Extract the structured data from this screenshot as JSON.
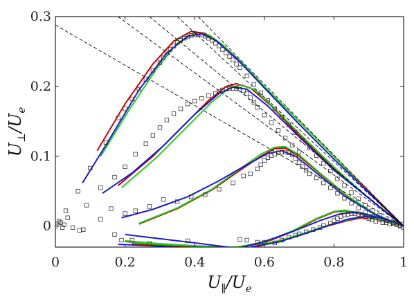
{
  "chart_data": {
    "type": "line",
    "xlabel": "U_∥/U_e",
    "ylabel": "U_⊥/U_e",
    "xlabel_parts": {
      "main": "U",
      "sub": "∥",
      "rest": "/U",
      "sub2": "e"
    },
    "ylabel_parts": {
      "main": "U",
      "sub": "⊥",
      "rest": "/U",
      "sub2": "e"
    },
    "xlim": [
      0,
      1
    ],
    "ylim": [
      -0.03,
      0.3
    ],
    "x_ticks": [
      0,
      0.2,
      0.4,
      0.6,
      0.8,
      1
    ],
    "y_ticks": [
      0,
      0.1,
      0.2,
      0.3
    ],
    "x_tick_labels": [
      "0",
      "0.2",
      "0.4",
      "0.6",
      "0.8",
      "1"
    ],
    "y_tick_labels": [
      "0",
      "0.1",
      "0.2",
      "0.3"
    ],
    "grid": false,
    "legend": "none",
    "series": [
      {
        "color": "#cc0000",
        "style": "solid",
        "x": [
          0.12,
          0.2,
          0.28,
          0.34,
          0.39,
          0.43,
          0.47,
          0.53,
          0.6,
          0.7,
          0.8,
          0.9,
          1.0
        ],
        "y": [
          0.108,
          0.175,
          0.232,
          0.265,
          0.279,
          0.276,
          0.262,
          0.235,
          0.2,
          0.15,
          0.1,
          0.05,
          0.0
        ]
      },
      {
        "color": "#22cc22",
        "style": "solid",
        "x": [
          0.13,
          0.21,
          0.29,
          0.35,
          0.4,
          0.44,
          0.48,
          0.54,
          0.61,
          0.71,
          0.81,
          0.9,
          1.0
        ],
        "y": [
          0.1,
          0.165,
          0.225,
          0.262,
          0.276,
          0.274,
          0.26,
          0.232,
          0.195,
          0.145,
          0.095,
          0.048,
          0.0
        ]
      },
      {
        "color": "#1a1acc",
        "style": "solid",
        "x": [
          0.078,
          0.15,
          0.24,
          0.32,
          0.38,
          0.42,
          0.46,
          0.52,
          0.6,
          0.7,
          0.8,
          0.9,
          1.0
        ],
        "y": [
          0.062,
          0.12,
          0.195,
          0.248,
          0.272,
          0.275,
          0.266,
          0.24,
          0.198,
          0.146,
          0.096,
          0.048,
          0.0
        ]
      },
      {
        "color": "#cc0000",
        "style": "solid",
        "x": [
          0.18,
          0.28,
          0.37,
          0.44,
          0.49,
          0.52,
          0.56,
          0.62,
          0.7,
          0.8,
          0.9,
          1.0
        ],
        "y": [
          0.058,
          0.1,
          0.145,
          0.18,
          0.2,
          0.204,
          0.198,
          0.172,
          0.13,
          0.082,
          0.04,
          0.0
        ]
      },
      {
        "color": "#22cc22",
        "style": "solid",
        "x": [
          0.19,
          0.29,
          0.38,
          0.45,
          0.5,
          0.53,
          0.57,
          0.63,
          0.71,
          0.81,
          0.9,
          1.0
        ],
        "y": [
          0.055,
          0.098,
          0.143,
          0.178,
          0.198,
          0.202,
          0.196,
          0.168,
          0.128,
          0.08,
          0.04,
          0.0
        ]
      },
      {
        "color": "#1a1acc",
        "style": "solid",
        "x": [
          0.135,
          0.22,
          0.31,
          0.4,
          0.47,
          0.51,
          0.55,
          0.61,
          0.7,
          0.8,
          0.9,
          1.0
        ],
        "y": [
          0.047,
          0.076,
          0.115,
          0.16,
          0.19,
          0.199,
          0.196,
          0.172,
          0.128,
          0.08,
          0.04,
          0.0
        ]
      },
      {
        "color": "#cc0000",
        "style": "solid",
        "x": [
          0.24,
          0.35,
          0.45,
          0.53,
          0.59,
          0.63,
          0.66,
          0.7,
          0.76,
          0.84,
          0.92,
          1.0
        ],
        "y": [
          0.003,
          0.025,
          0.052,
          0.08,
          0.1,
          0.111,
          0.112,
          0.1,
          0.075,
          0.042,
          0.016,
          0.0
        ]
      },
      {
        "color": "#22cc22",
        "style": "solid",
        "x": [
          0.24,
          0.35,
          0.45,
          0.53,
          0.59,
          0.63,
          0.66,
          0.7,
          0.76,
          0.84,
          0.92,
          1.0
        ],
        "y": [
          0.004,
          0.026,
          0.053,
          0.082,
          0.103,
          0.113,
          0.114,
          0.102,
          0.076,
          0.043,
          0.017,
          0.0
        ]
      },
      {
        "color": "#1a1acc",
        "style": "solid",
        "x": [
          0.19,
          0.28,
          0.38,
          0.47,
          0.55,
          0.61,
          0.65,
          0.69,
          0.75,
          0.83,
          0.92,
          1.0
        ],
        "y": [
          0.012,
          0.024,
          0.042,
          0.065,
          0.088,
          0.104,
          0.108,
          0.1,
          0.076,
          0.043,
          0.016,
          0.0
        ]
      },
      {
        "color": "#cc0000",
        "style": "solid",
        "x": [
          0.2,
          0.3,
          0.4,
          0.48,
          0.52,
          0.6,
          0.68,
          0.75,
          0.8,
          0.83,
          0.87,
          0.93,
          1.0
        ],
        "y": [
          -0.022,
          -0.026,
          -0.029,
          -0.031,
          -0.031,
          -0.024,
          -0.008,
          0.01,
          0.02,
          0.022,
          0.018,
          0.009,
          0.0
        ]
      },
      {
        "color": "#22cc22",
        "style": "solid",
        "x": [
          0.2,
          0.3,
          0.4,
          0.48,
          0.52,
          0.6,
          0.68,
          0.75,
          0.8,
          0.83,
          0.87,
          0.93,
          1.0
        ],
        "y": [
          -0.021,
          -0.025,
          -0.028,
          -0.03,
          -0.03,
          -0.023,
          -0.007,
          0.011,
          0.021,
          0.023,
          0.019,
          0.01,
          0.0
        ]
      },
      {
        "color": "#1a1acc",
        "style": "solid",
        "x": [
          0.2,
          0.3,
          0.4,
          0.48,
          0.51
        ],
        "y": [
          -0.012,
          -0.018,
          -0.024,
          -0.029,
          -0.031
        ]
      },
      {
        "color": "#1a1acc",
        "style": "solid",
        "x": [
          0.53,
          0.6,
          0.68,
          0.76,
          0.82,
          0.87,
          0.93,
          1.0
        ],
        "y": [
          -0.031,
          -0.022,
          -0.008,
          0.008,
          0.018,
          0.02,
          0.012,
          0.0
        ]
      },
      {
        "color": "#1a1acc",
        "style": "solid",
        "x": [
          0.18,
          0.27,
          0.36,
          0.42,
          0.45
        ],
        "y": [
          -0.026,
          -0.028,
          -0.03,
          -0.031,
          -0.031
        ]
      },
      {
        "color": "#cc0000",
        "style": "solid",
        "x": [
          0.22,
          0.3,
          0.38,
          0.43
        ],
        "y": [
          -0.025,
          -0.027,
          -0.029,
          -0.03
        ]
      },
      {
        "color": "#22cc22",
        "style": "solid",
        "x": [
          0.22,
          0.3,
          0.38,
          0.43
        ],
        "y": [
          -0.024,
          -0.026,
          -0.028,
          -0.029
        ]
      },
      {
        "color": "#cc0000",
        "style": "solid",
        "x": [
          0.58,
          0.65,
          0.72,
          0.78,
          0.84,
          0.88,
          0.92,
          0.96,
          1.0
        ],
        "y": [
          -0.029,
          -0.021,
          -0.01,
          0.0,
          0.008,
          0.012,
          0.01,
          0.005,
          0.0
        ]
      },
      {
        "color": "#22cc22",
        "style": "solid",
        "x": [
          0.58,
          0.65,
          0.72,
          0.78,
          0.84,
          0.88,
          0.92,
          0.96,
          1.0
        ],
        "y": [
          -0.028,
          -0.02,
          -0.009,
          0.001,
          0.009,
          0.013,
          0.011,
          0.006,
          0.0
        ]
      },
      {
        "color": "#1a1acc",
        "style": "solid",
        "x": [
          0.56,
          0.64,
          0.71,
          0.78,
          0.84,
          0.89,
          0.93,
          0.97,
          1.0
        ],
        "y": [
          -0.03,
          -0.023,
          -0.012,
          0.0,
          0.01,
          0.014,
          0.012,
          0.006,
          0.0
        ]
      },
      {
        "color": "#000000",
        "style": "dashed",
        "x": [
          0.0,
          1.0
        ],
        "y": [
          0.288,
          0.0
        ]
      },
      {
        "color": "#000000",
        "style": "dashed",
        "x": [
          0.27,
          1.0
        ],
        "y": [
          0.3,
          0.0
        ]
      },
      {
        "color": "#000000",
        "style": "dashed",
        "x": [
          0.35,
          1.0
        ],
        "y": [
          0.3,
          0.0
        ]
      },
      {
        "color": "#000000",
        "style": "dashed",
        "x": [
          0.41,
          1.0
        ],
        "y": [
          0.3,
          0.0
        ]
      },
      {
        "color": "#000000",
        "style": "dashed",
        "x": [
          0.18,
          1.0
        ],
        "y": [
          0.3,
          0.0
        ]
      }
    ],
    "markers": {
      "symbol": "square",
      "color": "#333333",
      "points": [
        [
          0.0,
          0.0
        ],
        [
          0.005,
          0.003
        ],
        [
          0.01,
          0.007
        ],
        [
          0.015,
          0.005
        ],
        [
          0.02,
          -0.002
        ],
        [
          0.025,
          0.002
        ],
        [
          0.03,
          0.022
        ],
        [
          0.035,
          0.012
        ],
        [
          0.05,
          -0.002
        ],
        [
          0.065,
          0.05
        ],
        [
          0.07,
          -0.006
        ],
        [
          0.08,
          -0.005
        ],
        [
          0.09,
          0.03
        ],
        [
          0.1,
          0.083
        ],
        [
          0.13,
          0.01
        ],
        [
          0.145,
          0.12
        ],
        [
          0.18,
          0.155
        ],
        [
          0.2,
          0.168
        ],
        [
          0.22,
          0.182
        ],
        [
          0.24,
          0.196
        ],
        [
          0.26,
          0.21
        ],
        [
          0.28,
          0.223
        ],
        [
          0.3,
          0.234
        ],
        [
          0.31,
          0.241
        ],
        [
          0.32,
          0.248
        ],
        [
          0.33,
          0.253
        ],
        [
          0.34,
          0.258
        ],
        [
          0.35,
          0.263
        ],
        [
          0.36,
          0.266
        ],
        [
          0.37,
          0.269
        ],
        [
          0.38,
          0.271
        ],
        [
          0.39,
          0.273
        ],
        [
          0.4,
          0.274
        ],
        [
          0.41,
          0.274
        ],
        [
          0.42,
          0.274
        ],
        [
          0.43,
          0.272
        ],
        [
          0.44,
          0.269
        ],
        [
          0.45,
          0.266
        ],
        [
          0.46,
          0.262
        ],
        [
          0.47,
          0.258
        ],
        [
          0.48,
          0.253
        ],
        [
          0.49,
          0.248
        ],
        [
          0.5,
          0.243
        ],
        [
          0.51,
          0.238
        ],
        [
          0.52,
          0.232
        ],
        [
          0.53,
          0.227
        ],
        [
          0.55,
          0.215
        ],
        [
          0.57,
          0.203
        ],
        [
          0.59,
          0.191
        ],
        [
          0.61,
          0.18
        ],
        [
          0.63,
          0.168
        ],
        [
          0.65,
          0.156
        ],
        [
          0.67,
          0.145
        ],
        [
          0.69,
          0.134
        ],
        [
          0.71,
          0.123
        ],
        [
          0.73,
          0.112
        ],
        [
          0.75,
          0.101
        ],
        [
          0.77,
          0.09
        ],
        [
          0.79,
          0.079
        ],
        [
          0.81,
          0.068
        ],
        [
          0.83,
          0.058
        ],
        [
          0.85,
          0.048
        ],
        [
          0.87,
          0.039
        ],
        [
          0.89,
          0.03
        ],
        [
          0.91,
          0.022
        ],
        [
          0.93,
          0.015
        ],
        [
          0.95,
          0.008
        ],
        [
          0.97,
          0.004
        ],
        [
          0.99,
          0.001
        ],
        [
          0.13,
          0.055
        ],
        [
          0.17,
          0.07
        ],
        [
          0.2,
          0.085
        ],
        [
          0.23,
          0.103
        ],
        [
          0.26,
          0.118
        ],
        [
          0.28,
          0.13
        ],
        [
          0.3,
          0.141
        ],
        [
          0.32,
          0.152
        ],
        [
          0.34,
          0.161
        ],
        [
          0.36,
          0.168
        ],
        [
          0.38,
          0.175
        ],
        [
          0.4,
          0.179
        ],
        [
          0.42,
          0.183
        ],
        [
          0.44,
          0.187
        ],
        [
          0.46,
          0.19
        ],
        [
          0.47,
          0.193
        ],
        [
          0.48,
          0.195
        ],
        [
          0.49,
          0.196
        ],
        [
          0.5,
          0.197
        ],
        [
          0.51,
          0.197
        ],
        [
          0.52,
          0.197
        ],
        [
          0.53,
          0.196
        ],
        [
          0.54,
          0.194
        ],
        [
          0.55,
          0.19
        ],
        [
          0.56,
          0.184
        ],
        [
          0.57,
          0.177
        ],
        [
          0.58,
          0.17
        ],
        [
          0.6,
          0.159
        ],
        [
          0.62,
          0.148
        ],
        [
          0.64,
          0.137
        ],
        [
          0.66,
          0.126
        ],
        [
          0.68,
          0.116
        ],
        [
          0.7,
          0.106
        ],
        [
          0.16,
          0.025
        ],
        [
          0.2,
          0.018
        ],
        [
          0.23,
          0.022
        ],
        [
          0.27,
          0.028
        ],
        [
          0.31,
          0.038
        ],
        [
          0.35,
          0.035
        ],
        [
          0.39,
          0.042
        ],
        [
          0.43,
          0.045
        ],
        [
          0.47,
          0.053
        ],
        [
          0.51,
          0.062
        ],
        [
          0.54,
          0.072
        ],
        [
          0.56,
          0.075
        ],
        [
          0.58,
          0.082
        ],
        [
          0.59,
          0.088
        ],
        [
          0.6,
          0.094
        ],
        [
          0.61,
          0.098
        ],
        [
          0.62,
          0.101
        ],
        [
          0.63,
          0.103
        ],
        [
          0.64,
          0.105
        ],
        [
          0.65,
          0.106
        ],
        [
          0.66,
          0.106
        ],
        [
          0.67,
          0.105
        ],
        [
          0.68,
          0.102
        ],
        [
          0.69,
          0.097
        ],
        [
          0.7,
          0.091
        ],
        [
          0.71,
          0.085
        ],
        [
          0.72,
          0.08
        ],
        [
          0.73,
          0.075
        ],
        [
          0.75,
          0.069
        ],
        [
          0.77,
          0.062
        ],
        [
          0.79,
          0.055
        ],
        [
          0.81,
          0.047
        ],
        [
          0.83,
          0.04
        ],
        [
          0.85,
          0.033
        ],
        [
          0.87,
          0.026
        ],
        [
          0.89,
          0.02
        ],
        [
          0.91,
          0.014
        ],
        [
          0.93,
          0.009
        ],
        [
          0.95,
          0.005
        ],
        [
          0.17,
          -0.012
        ],
        [
          0.19,
          -0.02
        ],
        [
          0.22,
          -0.02
        ],
        [
          0.27,
          -0.025
        ],
        [
          0.38,
          -0.021
        ],
        [
          0.53,
          -0.019
        ],
        [
          0.55,
          -0.02
        ],
        [
          0.58,
          -0.023
        ],
        [
          0.6,
          -0.023
        ],
        [
          0.63,
          -0.024
        ],
        [
          0.65,
          -0.02
        ],
        [
          0.67,
          -0.016
        ],
        [
          0.69,
          -0.013
        ],
        [
          0.7,
          -0.011
        ],
        [
          0.72,
          -0.008
        ],
        [
          0.74,
          -0.005
        ],
        [
          0.76,
          -0.002
        ],
        [
          0.77,
          0.001
        ],
        [
          0.79,
          0.004
        ],
        [
          0.8,
          0.008
        ],
        [
          0.81,
          0.011
        ],
        [
          0.82,
          0.014
        ],
        [
          0.83,
          0.016
        ],
        [
          0.84,
          0.017
        ],
        [
          0.85,
          0.018
        ],
        [
          0.86,
          0.018
        ],
        [
          0.87,
          0.017
        ],
        [
          0.88,
          0.015
        ],
        [
          0.89,
          0.013
        ],
        [
          0.9,
          0.011
        ],
        [
          0.91,
          0.009
        ],
        [
          0.92,
          0.007
        ],
        [
          0.94,
          0.005
        ],
        [
          0.96,
          0.003
        ],
        [
          0.98,
          0.002
        ],
        [
          0.99,
          0.0
        ],
        [
          1.0,
          -0.002
        ],
        [
          1.0,
          0.003
        ],
        [
          0.98,
          0.004
        ],
        [
          0.97,
          0.005
        ]
      ]
    }
  }
}
